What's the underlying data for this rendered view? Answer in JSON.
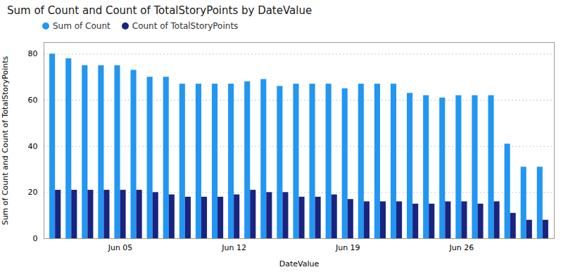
{
  "chart_data": {
    "type": "bar",
    "title": "Sum of Count and Count of TotalStoryPoints by DateValue",
    "xlabel": "DateValue",
    "ylabel": "Sum of Count and Count of TotalStoryPoints",
    "categories": [
      null,
      null,
      null,
      null,
      "Jun 05",
      null,
      null,
      null,
      null,
      null,
      null,
      "Jun 12",
      null,
      null,
      null,
      null,
      null,
      null,
      "Jun 19",
      null,
      null,
      null,
      null,
      null,
      null,
      "Jun 26",
      null,
      null,
      null,
      null,
      null
    ],
    "series": [
      {
        "name": "Sum of Count",
        "color": "#2196F3",
        "values": [
          80,
          78,
          75,
          75,
          75,
          73,
          70,
          70,
          67,
          67,
          67,
          67,
          68,
          69,
          66,
          67,
          67,
          67,
          65,
          67,
          67,
          67,
          63,
          62,
          61,
          62,
          62,
          62,
          41,
          31,
          31
        ]
      },
      {
        "name": "Count of TotalStoryPoints",
        "color": "#1A237E",
        "values": [
          21,
          21,
          21,
          21,
          21,
          21,
          20,
          19,
          18,
          18,
          18,
          19,
          21,
          20,
          20,
          18,
          18,
          19,
          17,
          16,
          16,
          16,
          15,
          15,
          16,
          16,
          15,
          16,
          11,
          8,
          8
        ]
      }
    ],
    "ylim": [
      0,
      85
    ],
    "yticks": [
      0,
      20,
      40,
      60,
      80
    ],
    "grid": true,
    "legend": "upper left"
  }
}
